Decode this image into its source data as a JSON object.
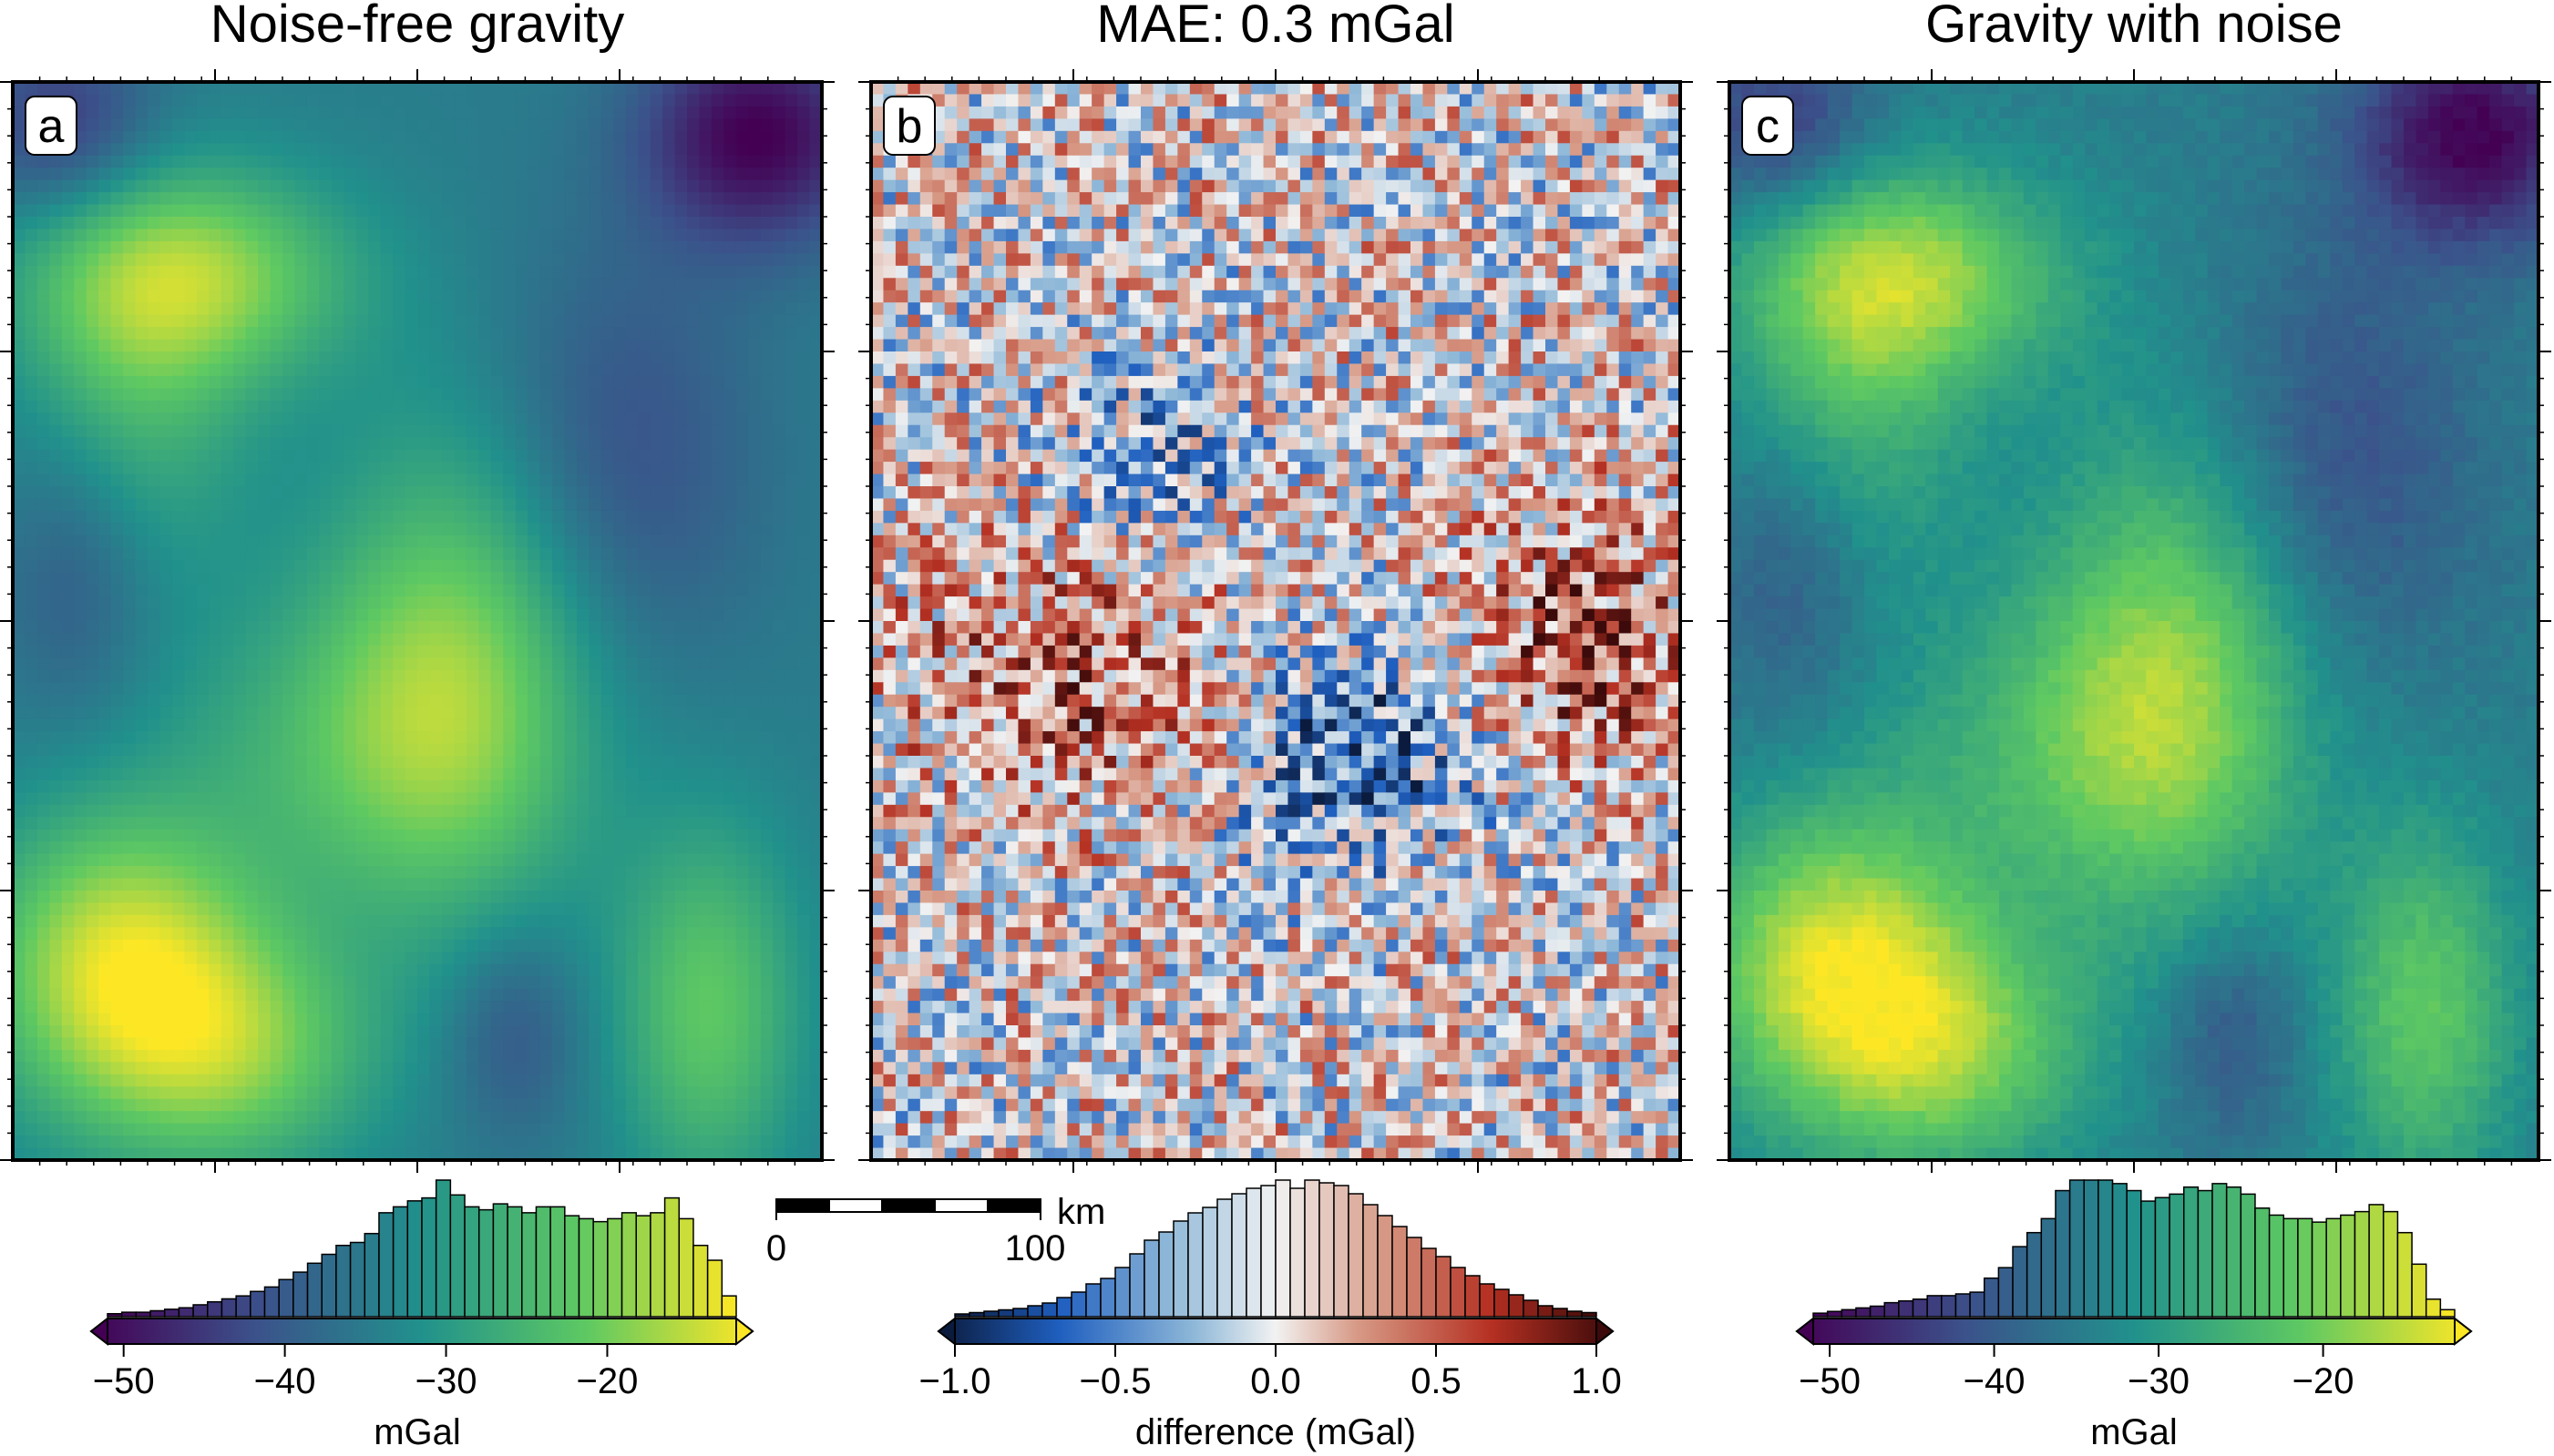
{
  "chart_data": [
    {
      "type": "heatmap",
      "panel_label": "a",
      "title": "Noise-free gravity",
      "colormap": "viridis",
      "colorbar": {
        "label": "mGal",
        "range": [
          -51,
          -12
        ],
        "ticks": [
          -50,
          -40,
          -30,
          -20
        ],
        "tick_labels": [
          "−50",
          "−40",
          "−30",
          "−20"
        ],
        "histogram": [
          2,
          3,
          3,
          4,
          5,
          6,
          8,
          10,
          12,
          14,
          17,
          20,
          25,
          30,
          36,
          42,
          48,
          50,
          56,
          70,
          74,
          78,
          80,
          92,
          82,
          74,
          72,
          76,
          74,
          70,
          74,
          74,
          68,
          66,
          64,
          66,
          70,
          68,
          70,
          80,
          66,
          48,
          38,
          14
        ]
      }
    },
    {
      "type": "heatmap",
      "panel_label": "b",
      "title": "MAE: 0.3 mGal",
      "colormap": "balance (blue-white-red)",
      "colorbar": {
        "label": "difference (mGal)",
        "range": [
          -1.0,
          1.0
        ],
        "ticks": [
          -1.0,
          -0.5,
          0.0,
          0.5,
          1.0
        ],
        "tick_labels": [
          "−1.0",
          "−0.5",
          "0.0",
          "0.5",
          "1.0"
        ],
        "histogram": [
          2,
          3,
          4,
          5,
          6,
          8,
          10,
          14,
          18,
          24,
          28,
          36,
          46,
          56,
          62,
          70,
          76,
          80,
          86,
          90,
          94,
          96,
          100,
          94,
          100,
          98,
          96,
          90,
          82,
          74,
          66,
          58,
          50,
          44,
          36,
          30,
          24,
          20,
          16,
          12,
          8,
          6,
          4,
          3
        ]
      },
      "scalebar": {
        "labels": [
          "0",
          "100"
        ],
        "unit": "km"
      }
    },
    {
      "type": "heatmap",
      "panel_label": "c",
      "title": "Gravity with noise",
      "colormap": "viridis",
      "colorbar": {
        "label": "mGal",
        "range": [
          -51,
          -12
        ],
        "ticks": [
          -50,
          -40,
          -30,
          -20
        ],
        "tick_labels": [
          "−50",
          "−40",
          "−30",
          "−20"
        ],
        "histogram": [
          2,
          3,
          4,
          5,
          6,
          8,
          9,
          10,
          12,
          12,
          13,
          14,
          22,
          28,
          40,
          48,
          56,
          72,
          78,
          78,
          78,
          76,
          72,
          66,
          68,
          70,
          74,
          72,
          76,
          74,
          70,
          62,
          58,
          56,
          56,
          54,
          56,
          58,
          60,
          64,
          60,
          48,
          30,
          10,
          4
        ]
      }
    }
  ],
  "colors": {
    "viridis_stops": [
      "#440154",
      "#3b528b",
      "#21918c",
      "#5ec962",
      "#fde725"
    ],
    "diverging_stops": [
      "#0b1b3d",
      "#1f5fbf",
      "#8fb8d8",
      "#f2f2f2",
      "#d79a86",
      "#b53022",
      "#3c0a0a"
    ],
    "frame": "#000000"
  }
}
